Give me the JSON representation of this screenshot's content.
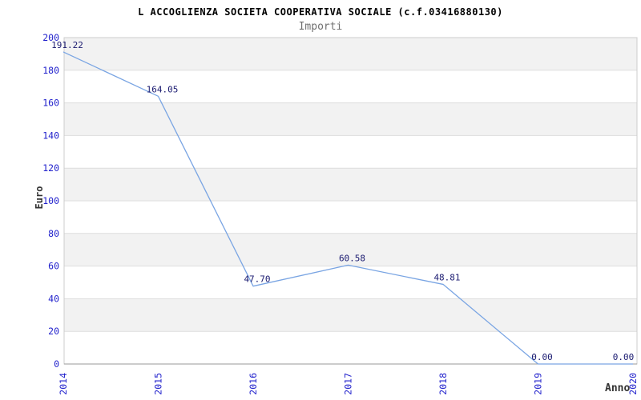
{
  "header": {
    "title": "L ACCOGLIENZA SOCIETA COOPERATIVA SOCIALE (c.f.03416880130)",
    "subtitle": "Importi"
  },
  "chart_data": {
    "type": "line",
    "title": "L ACCOGLIENZA SOCIETA COOPERATIVA SOCIALE (c.f.03416880130)",
    "subtitle": "Importi",
    "xlabel": "Anno",
    "ylabel": "Euro",
    "categories": [
      "2014",
      "2015",
      "2016",
      "2017",
      "2018",
      "2019",
      "2020"
    ],
    "values": [
      191.22,
      164.05,
      47.7,
      60.58,
      48.81,
      0.0,
      0.0
    ],
    "point_labels": [
      "191.22",
      "164.05",
      "47.70",
      "60.58",
      "48.81",
      "0.00",
      "0.00"
    ],
    "ylim": [
      0,
      200
    ],
    "ytick_step": 20,
    "yticks": [
      "0",
      "20",
      "40",
      "60",
      "80",
      "100",
      "120",
      "140",
      "160",
      "180",
      "200"
    ],
    "grid": "horizontal-bands-alternating",
    "legend": "none",
    "colors": {
      "line": "#7AA5E3",
      "tick_label": "#2121CC",
      "point_label": "#1A1A70",
      "band_fill": "#F2F2F2",
      "gridline": "#DDDDDD",
      "plot_border": "#CCCCCC",
      "axis_line": "#999999",
      "title": "#000000",
      "subtitle": "#707070",
      "axis_title": "#333333",
      "background": "#FFFFFF"
    }
  }
}
